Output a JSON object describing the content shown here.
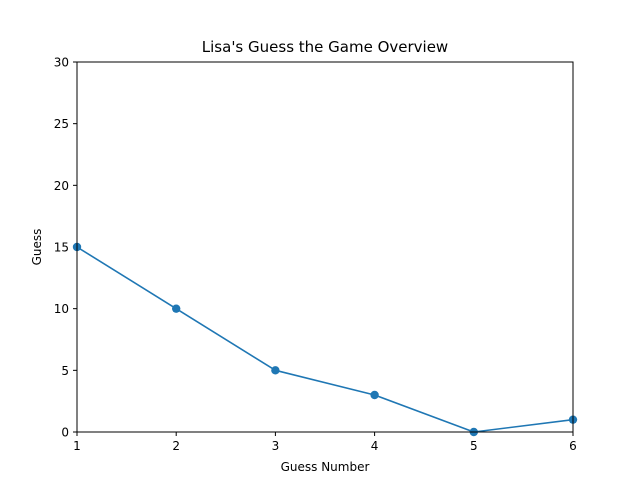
{
  "chart_data": {
    "type": "line",
    "title": "Lisa's Guess the Game Overview",
    "xlabel": "Guess Number",
    "ylabel": "Guess",
    "x": [
      1,
      2,
      3,
      4,
      5,
      6
    ],
    "series": [
      {
        "values": [
          15,
          10,
          5,
          3,
          0,
          1
        ],
        "color": "#1f77b4",
        "marker": "circle"
      }
    ],
    "xlim": [
      1,
      6
    ],
    "ylim": [
      0,
      30
    ],
    "xticks": [
      1,
      2,
      3,
      4,
      5,
      6
    ],
    "yticks": [
      0,
      5,
      10,
      15,
      20,
      25,
      30
    ],
    "grid": false,
    "legend": false
  }
}
